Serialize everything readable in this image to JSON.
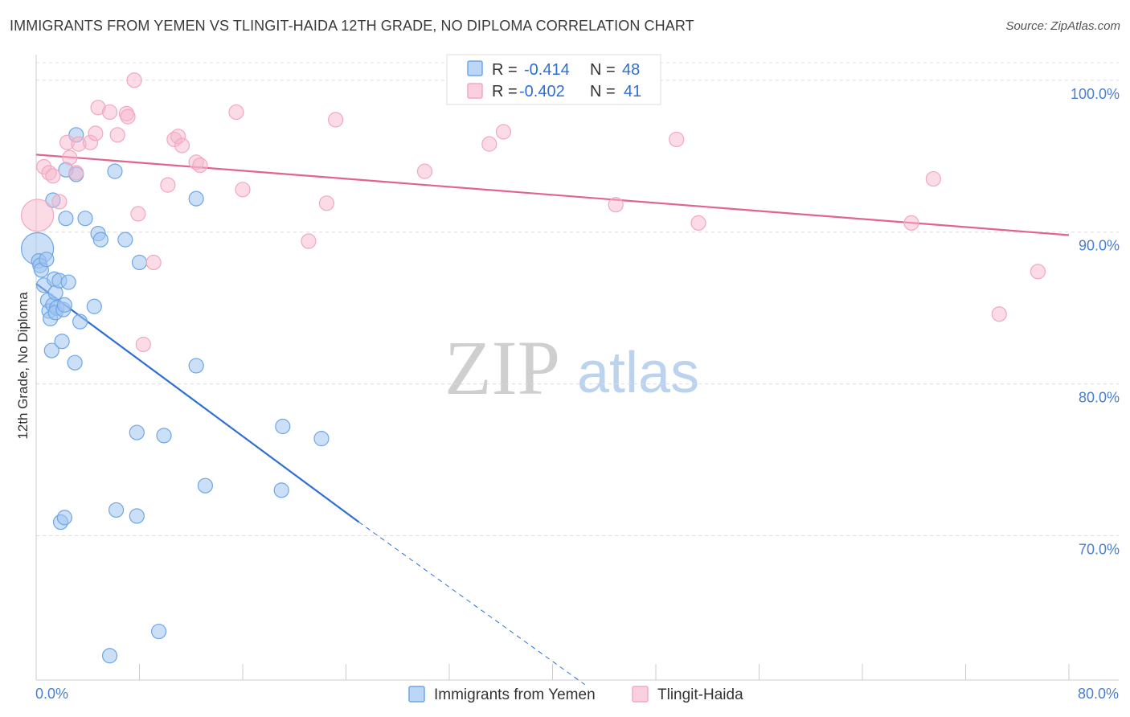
{
  "title": "IMMIGRANTS FROM YEMEN VS TLINGIT-HAIDA 12TH GRADE, NO DIPLOMA CORRELATION CHART",
  "source": "Source: ZipAtlas.com",
  "watermark": {
    "zip": "ZIP",
    "atlas": "atlas"
  },
  "legend": {
    "rows": [
      {
        "r_label": "R =",
        "r_value": "-0.414",
        "n_label": "N =",
        "n_value": "48",
        "color": "#6ea6e8"
      },
      {
        "r_label": "R =",
        "r_value": "-0.402",
        "n_label": "N =",
        "n_value": "41",
        "color": "#f3a7c0"
      }
    ]
  },
  "bottom_legend": [
    "Immigrants from Yemen",
    "Tlingit-Haida"
  ],
  "chart_data": {
    "type": "scatter",
    "title": "IMMIGRANTS FROM YEMEN VS TLINGIT-HAIDA 12TH GRADE, NO DIPLOMA CORRELATION CHART",
    "xlabel": "",
    "ylabel": "12th Grade, No Diploma",
    "xlim": [
      0,
      80
    ],
    "ylim": [
      60.5,
      102
    ],
    "x_tick_labels": [
      "0.0%",
      "80.0%"
    ],
    "y_ticks": [
      70,
      80,
      90,
      100
    ],
    "y_tick_labels": [
      "70.0%",
      "80.0%",
      "90.0%",
      "100.0%"
    ],
    "series": [
      {
        "name": "Immigrants from Yemen",
        "color": "#6ea6e8",
        "line_color": "#2e6fd6",
        "r": -0.414,
        "n": 48,
        "trend": {
          "x0": 0,
          "y0": 86.6,
          "x1": 25,
          "y1": 70.9,
          "dash_to_x": 42.5,
          "dash_to_y": 60.2
        },
        "points": [
          [
            0.1,
            88.9,
            20
          ],
          [
            0.2,
            88.1,
            10
          ],
          [
            0.3,
            87.8,
            10
          ],
          [
            0.4,
            87.5,
            10
          ],
          [
            0.6,
            86.5,
            10
          ],
          [
            0.8,
            88.2,
            10
          ],
          [
            0.9,
            85.5,
            10
          ],
          [
            1.0,
            84.8,
            10
          ],
          [
            1.1,
            84.3,
            10
          ],
          [
            1.3,
            85.2,
            10
          ],
          [
            1.4,
            86.9,
            10
          ],
          [
            1.2,
            82.2,
            10
          ],
          [
            1.5,
            86.0,
            10
          ],
          [
            1.6,
            85.0,
            10
          ],
          [
            1.3,
            92.1,
            10
          ],
          [
            1.5,
            84.7,
            10
          ],
          [
            1.8,
            86.8,
            10
          ],
          [
            2.0,
            82.8,
            10
          ],
          [
            2.1,
            84.9,
            10
          ],
          [
            2.2,
            85.2,
            10
          ],
          [
            2.3,
            90.9,
            10
          ],
          [
            2.3,
            94.1,
            10
          ],
          [
            3.1,
            96.4,
            10
          ],
          [
            3.1,
            93.8,
            10
          ],
          [
            3.0,
            81.4,
            10
          ],
          [
            3.4,
            84.1,
            10
          ],
          [
            3.8,
            90.9,
            10
          ],
          [
            4.5,
            85.1,
            10
          ],
          [
            4.8,
            89.9,
            10
          ],
          [
            5.0,
            89.5,
            10
          ],
          [
            6.1,
            94.0,
            10
          ],
          [
            6.9,
            89.5,
            10
          ],
          [
            8.0,
            88.0,
            10
          ],
          [
            7.8,
            76.8,
            10
          ],
          [
            9.9,
            76.6,
            10
          ],
          [
            12.4,
            92.2,
            10
          ],
          [
            12.4,
            81.2,
            10
          ],
          [
            13.1,
            73.3,
            10
          ],
          [
            19.0,
            73.0,
            10
          ],
          [
            19.1,
            77.2,
            10
          ],
          [
            22.1,
            76.4,
            10
          ],
          [
            6.2,
            71.7,
            10
          ],
          [
            7.8,
            71.3,
            10
          ],
          [
            1.9,
            70.9,
            10
          ],
          [
            2.2,
            71.2,
            10
          ],
          [
            5.7,
            62.1,
            10
          ],
          [
            9.5,
            63.7,
            10
          ],
          [
            2.5,
            86.7,
            10
          ]
        ]
      },
      {
        "name": "Tlingit-Haida",
        "color": "#f3a7c0",
        "line_color": "#e0648f",
        "r": -0.402,
        "n": 41,
        "trend": {
          "x0": 0,
          "y0": 95.1,
          "x1": 80,
          "y1": 89.8
        },
        "points": [
          [
            0.1,
            91.1,
            20
          ],
          [
            0.6,
            94.3,
            10
          ],
          [
            1.0,
            93.9,
            10
          ],
          [
            1.3,
            93.7,
            10
          ],
          [
            1.8,
            92.0,
            10
          ],
          [
            2.4,
            95.9,
            10
          ],
          [
            2.6,
            94.9,
            10
          ],
          [
            3.1,
            93.9,
            10
          ],
          [
            3.3,
            95.8,
            10
          ],
          [
            4.2,
            95.9,
            10
          ],
          [
            4.6,
            96.5,
            10
          ],
          [
            4.8,
            98.2,
            10
          ],
          [
            5.7,
            97.9,
            10
          ],
          [
            6.3,
            96.4,
            10
          ],
          [
            7.0,
            97.8,
            10
          ],
          [
            7.1,
            97.6,
            10
          ],
          [
            7.6,
            100.0,
            10
          ],
          [
            7.9,
            91.2,
            10
          ],
          [
            8.3,
            82.6,
            10
          ],
          [
            9.1,
            88.0,
            10
          ],
          [
            10.2,
            93.1,
            10
          ],
          [
            10.7,
            96.1,
            10
          ],
          [
            11.0,
            96.3,
            10
          ],
          [
            11.3,
            95.7,
            10
          ],
          [
            12.4,
            94.6,
            10
          ],
          [
            12.7,
            94.4,
            10
          ],
          [
            15.5,
            97.9,
            10
          ],
          [
            16.0,
            92.8,
            10
          ],
          [
            21.1,
            89.4,
            10
          ],
          [
            22.5,
            91.9,
            10
          ],
          [
            23.2,
            97.4,
            10
          ],
          [
            30.1,
            94.0,
            10
          ],
          [
            35.1,
            95.8,
            10
          ],
          [
            36.2,
            96.6,
            10
          ],
          [
            44.9,
            91.8,
            10
          ],
          [
            49.6,
            96.1,
            10
          ],
          [
            51.3,
            90.6,
            10
          ],
          [
            67.8,
            90.6,
            10
          ],
          [
            69.5,
            93.5,
            10
          ],
          [
            74.6,
            84.6,
            10
          ],
          [
            77.6,
            87.4,
            10
          ]
        ]
      }
    ]
  }
}
